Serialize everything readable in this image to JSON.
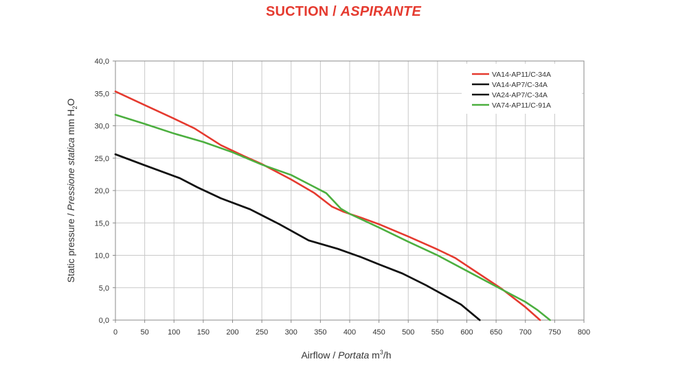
{
  "chart_data": {
    "type": "line",
    "title": {
      "part1": "SUCTION / ",
      "part2": "ASPIRANTE"
    },
    "xlabel": {
      "part1": "Airflow / ",
      "part2": "Portata",
      "part3": "  m",
      "sup": "3",
      "part4": "/h"
    },
    "ylabel": {
      "part1": "Static pressure / ",
      "part2": "Pressione statica",
      "part3": "  mm  H",
      "sub": "2",
      "part4": "O"
    },
    "xlim": [
      0,
      800
    ],
    "ylim": [
      0,
      40
    ],
    "x_ticks": [
      "0",
      "50",
      "100",
      "150",
      "200",
      "250",
      "300",
      "350",
      "400",
      "450",
      "500",
      "550",
      "600",
      "650",
      "700",
      "750",
      "800"
    ],
    "y_ticks": [
      "0,0",
      "5,0",
      "10,0",
      "15,0",
      "20,0",
      "25,0",
      "30,0",
      "35,0",
      "40,0"
    ],
    "grid": true,
    "legend_position": "top-right",
    "series": [
      {
        "name": "VA14-AP11/C-34A",
        "color": "#e53a2f",
        "points": [
          [
            0,
            35.3
          ],
          [
            50,
            33.2
          ],
          [
            100,
            31.1
          ],
          [
            135,
            29.6
          ],
          [
            180,
            27.0
          ],
          [
            220,
            25.3
          ],
          [
            250,
            24.1
          ],
          [
            300,
            21.7
          ],
          [
            340,
            19.6
          ],
          [
            370,
            17.5
          ],
          [
            390,
            16.7
          ],
          [
            420,
            15.8
          ],
          [
            450,
            14.8
          ],
          [
            500,
            12.9
          ],
          [
            550,
            10.9
          ],
          [
            580,
            9.6
          ],
          [
            620,
            7.2
          ],
          [
            660,
            4.8
          ],
          [
            700,
            2.0
          ],
          [
            725,
            0.0
          ]
        ]
      },
      {
        "name": "VA14-AP7/C-34A",
        "color": "#111111",
        "points": [
          [
            0,
            25.6
          ],
          [
            50,
            23.9
          ],
          [
            110,
            21.9
          ],
          [
            140,
            20.5
          ],
          [
            180,
            18.8
          ],
          [
            230,
            17.1
          ],
          [
            280,
            14.8
          ],
          [
            330,
            12.3
          ],
          [
            380,
            11.0
          ],
          [
            420,
            9.7
          ],
          [
            450,
            8.6
          ],
          [
            490,
            7.2
          ],
          [
            530,
            5.4
          ],
          [
            560,
            3.9
          ],
          [
            590,
            2.4
          ],
          [
            622,
            0.0
          ]
        ]
      },
      {
        "name": "VA24-AP7/C-34A",
        "color": "#111111",
        "points": [
          [
            0,
            25.6
          ],
          [
            50,
            23.9
          ],
          [
            110,
            21.9
          ],
          [
            140,
            20.5
          ],
          [
            180,
            18.8
          ],
          [
            230,
            17.1
          ],
          [
            280,
            14.8
          ],
          [
            330,
            12.3
          ],
          [
            380,
            11.0
          ],
          [
            420,
            9.7
          ],
          [
            450,
            8.6
          ],
          [
            490,
            7.2
          ],
          [
            530,
            5.4
          ],
          [
            560,
            3.9
          ],
          [
            590,
            2.4
          ],
          [
            622,
            0.0
          ]
        ]
      },
      {
        "name": "VA74-AP11/C-91A",
        "color": "#4caf3f",
        "points": [
          [
            0,
            31.7
          ],
          [
            50,
            30.3
          ],
          [
            100,
            28.8
          ],
          [
            150,
            27.5
          ],
          [
            200,
            25.9
          ],
          [
            250,
            24.0
          ],
          [
            300,
            22.4
          ],
          [
            330,
            21.0
          ],
          [
            360,
            19.6
          ],
          [
            385,
            17.2
          ],
          [
            400,
            16.4
          ],
          [
            450,
            14.3
          ],
          [
            500,
            12.1
          ],
          [
            550,
            10.0
          ],
          [
            600,
            7.6
          ],
          [
            650,
            5.2
          ],
          [
            700,
            2.8
          ],
          [
            720,
            1.6
          ],
          [
            742,
            0.0
          ]
        ]
      }
    ]
  }
}
